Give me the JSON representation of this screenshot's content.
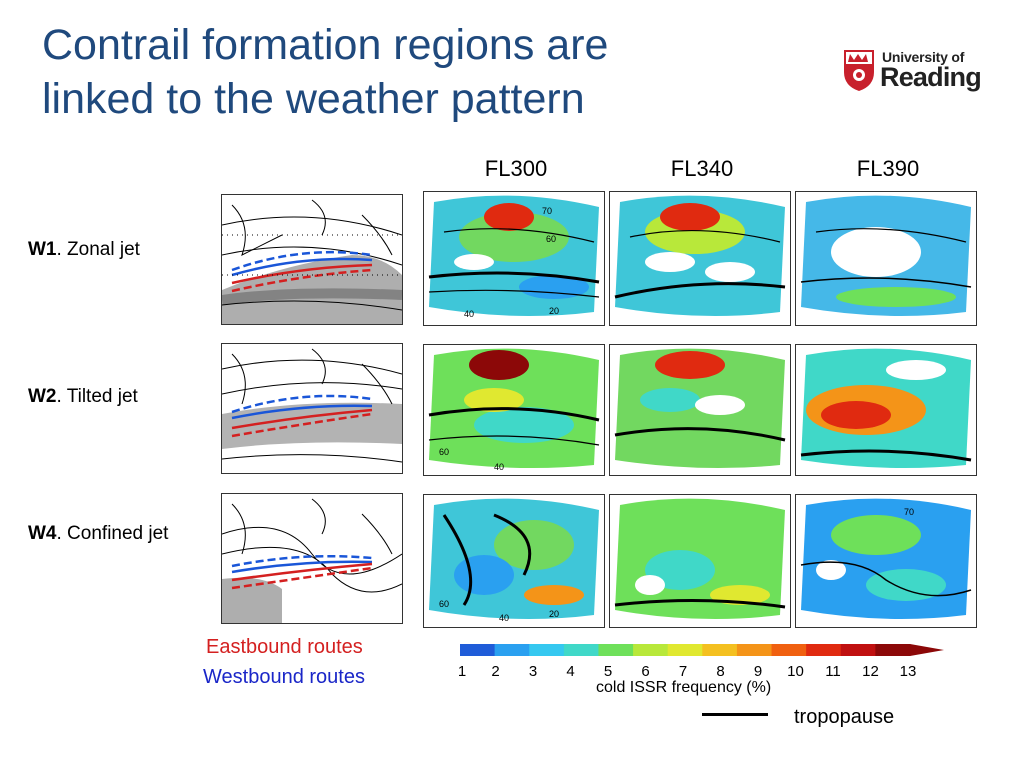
{
  "title_line1": "Contrail formation regions are",
  "title_line2": "linked to the weather pattern",
  "logo": {
    "line1": "University of",
    "line2": "Reading"
  },
  "columns": [
    "FL300",
    "FL340",
    "FL390"
  ],
  "rows": [
    {
      "code": "W1",
      "label": ". Zonal jet"
    },
    {
      "code": "W2",
      "label": ".  Tilted jet"
    },
    {
      "code": "W4",
      "label": ". Confined jet"
    }
  ],
  "map_contour_labels": {
    "row1": {
      "left": "70",
      "mid": "60",
      "bottom_left": "40",
      "bottom_right": "20"
    },
    "row2": {
      "left": "60",
      "bottom": "40"
    },
    "row3": {
      "top": "70",
      "left": "60",
      "bottom_left": "40",
      "bottom_right": "20"
    }
  },
  "legend": {
    "eastbound": "Eastbound routes",
    "westbound": "Westbound routes"
  },
  "colorbar": {
    "ticks": [
      "1",
      "2",
      "3",
      "4",
      "5",
      "6",
      "7",
      "8",
      "9",
      "10",
      "11",
      "12",
      "13"
    ],
    "colors": [
      "#1f5cd8",
      "#2aa0f0",
      "#35c8f0",
      "#40d8c8",
      "#6ee05a",
      "#b8e83a",
      "#e0e830",
      "#f4c020",
      "#f49418",
      "#f06010",
      "#e02a10",
      "#c01010",
      "#8c0808"
    ],
    "title": "cold ISSR frequency (%)"
  },
  "tropopause_label": "tropopause",
  "colors": {
    "title": "#1f497d",
    "east": "#d42020",
    "west": "#1a26c8"
  }
}
